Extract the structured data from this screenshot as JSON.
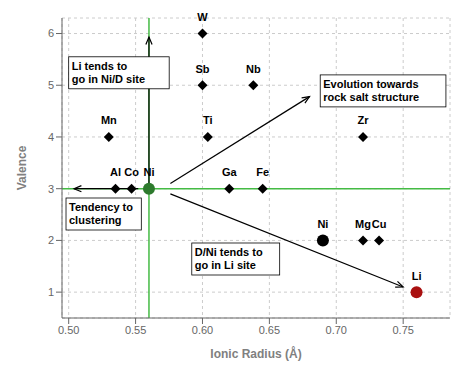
{
  "chart_data": {
    "type": "scatter",
    "xlabel": "Ionic Radius (Å)",
    "ylabel": "Valence",
    "xlim": [
      0.495,
      0.785
    ],
    "ylim": [
      0.5,
      6.3
    ],
    "xticks": [
      {
        "value": 0.5,
        "label": "0.50"
      },
      0.55,
      {
        "value": 0.6,
        "label": "0.60"
      },
      0.65,
      {
        "value": 0.7,
        "label": "0.70"
      },
      0.75
    ],
    "yticks": [
      1,
      2,
      3,
      4,
      5,
      6
    ],
    "grid": true,
    "points": [
      {
        "label": "W",
        "x": 0.6,
        "y": 6.0,
        "marker": "diamond",
        "color": "#000000"
      },
      {
        "label": "Sb",
        "x": 0.6,
        "y": 5.0,
        "marker": "diamond",
        "color": "#000000"
      },
      {
        "label": "Nb",
        "x": 0.638,
        "y": 5.0,
        "marker": "diamond",
        "color": "#000000"
      },
      {
        "label": "Ti",
        "x": 0.604,
        "y": 4.0,
        "marker": "diamond",
        "color": "#000000"
      },
      {
        "label": "Zr",
        "x": 0.72,
        "y": 4.0,
        "marker": "diamond",
        "color": "#000000"
      },
      {
        "label": "Mn",
        "x": 0.53,
        "y": 4.0,
        "marker": "diamond",
        "color": "#000000"
      },
      {
        "label": "Al",
        "x": 0.535,
        "y": 3.0,
        "marker": "diamond",
        "color": "#000000"
      },
      {
        "label": "Co",
        "x": 0.547,
        "y": 3.0,
        "marker": "diamond",
        "color": "#000000"
      },
      {
        "label": "Ga",
        "x": 0.62,
        "y": 3.0,
        "marker": "diamond",
        "color": "#000000"
      },
      {
        "label": "Fe",
        "x": 0.645,
        "y": 3.0,
        "marker": "diamond",
        "color": "#000000"
      },
      {
        "label": "Mg",
        "x": 0.72,
        "y": 2.0,
        "marker": "diamond",
        "color": "#000000"
      },
      {
        "label": "Cu",
        "x": 0.732,
        "y": 2.0,
        "marker": "diamond",
        "color": "#000000"
      },
      {
        "label": "Ni",
        "x": 0.56,
        "y": 3.0,
        "marker": "circle",
        "color": "#2d7a2d"
      },
      {
        "label": "Ni",
        "x": 0.69,
        "y": 2.0,
        "marker": "circle",
        "color": "#000000"
      },
      {
        "label": "Li",
        "x": 0.76,
        "y": 1.0,
        "marker": "circle",
        "color": "#aa1111"
      }
    ],
    "reference_lines": [
      {
        "axis": "x",
        "value": 0.56,
        "color": "#44bb44"
      },
      {
        "axis": "y",
        "value": 3.0,
        "color": "#44bb44"
      }
    ],
    "arrows": [
      {
        "from": [
          0.56,
          3.08
        ],
        "to": [
          0.56,
          5.93
        ]
      },
      {
        "from": [
          0.576,
          3.1
        ],
        "to": [
          0.68,
          4.78
        ]
      },
      {
        "from": [
          0.576,
          2.9
        ],
        "to": [
          0.75,
          1.1
        ]
      },
      {
        "from": [
          0.552,
          3.0
        ],
        "to": [
          0.504,
          3.0
        ]
      }
    ],
    "annotations": [
      {
        "text": "Li tends to\ngo in Ni/D site",
        "x": 0.5,
        "y": 5.55
      },
      {
        "text": "Tendency to\nclustering",
        "x": 0.498,
        "y": 2.82
      },
      {
        "text": "D/Ni tends to\ngo in Li site",
        "x": 0.592,
        "y": 1.95
      },
      {
        "text": "Evolution towards\nrock salt structure",
        "x": 0.688,
        "y": 5.2
      }
    ]
  }
}
